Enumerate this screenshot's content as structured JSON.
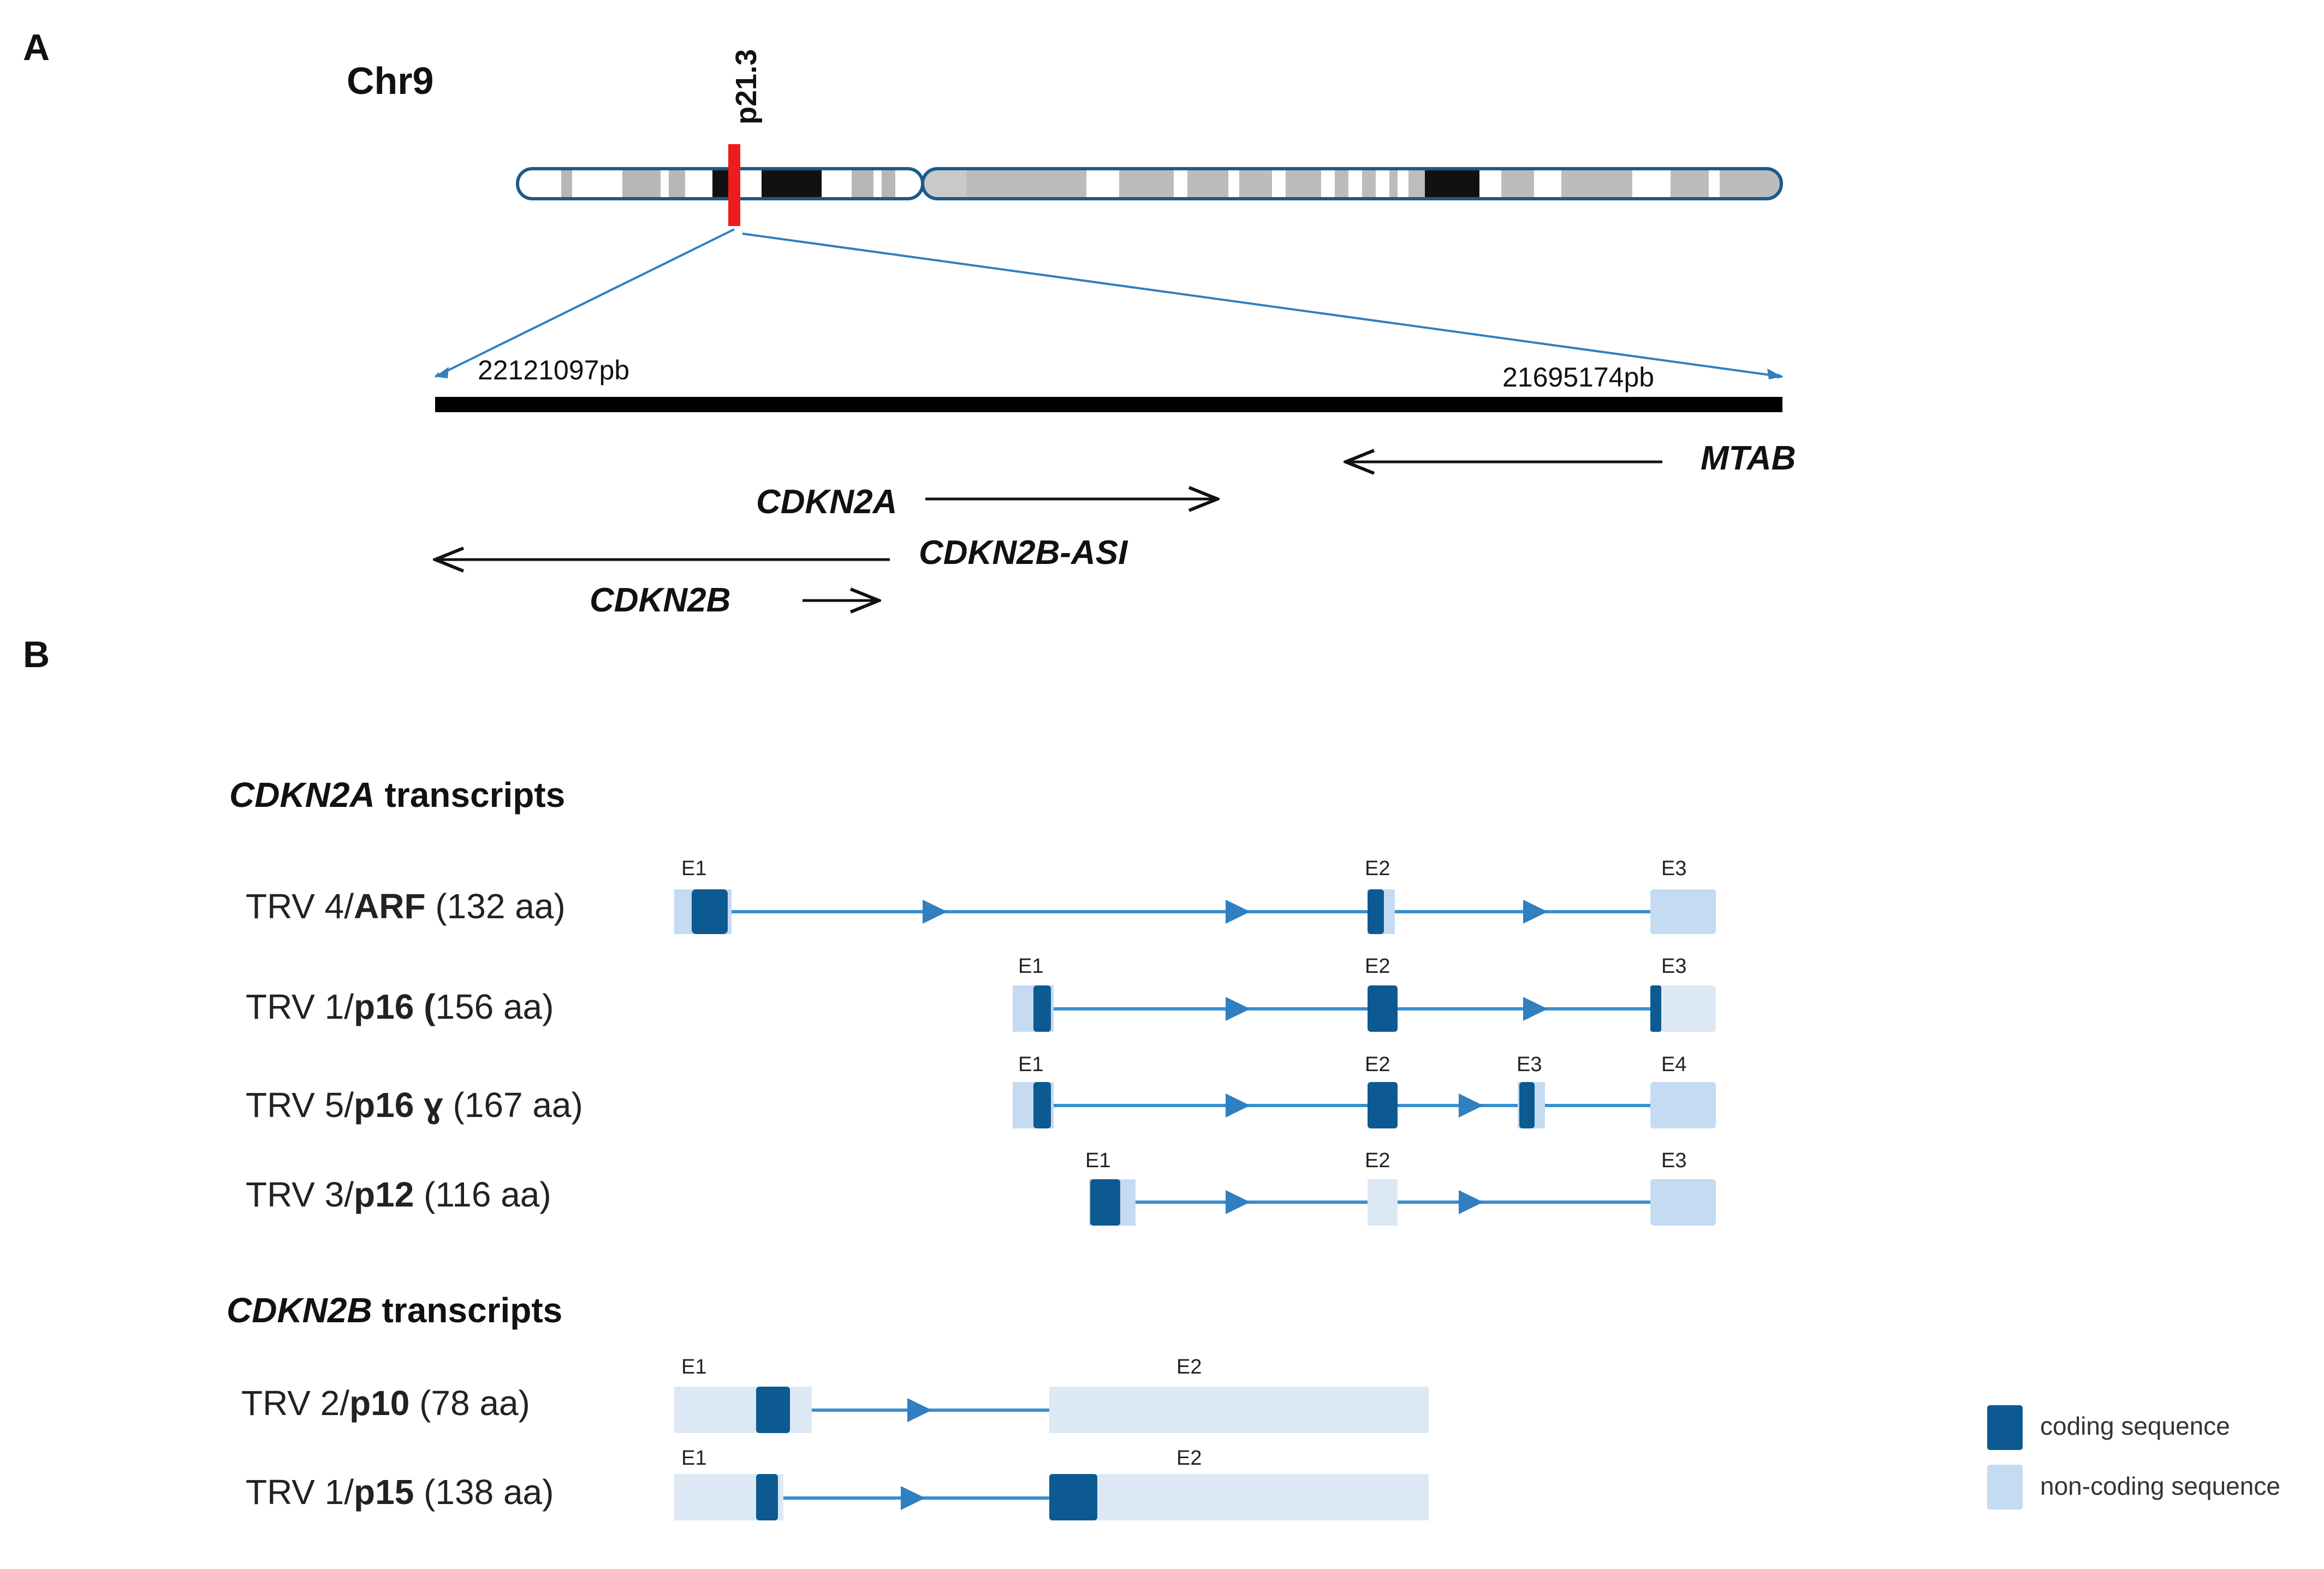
{
  "panel_a": {
    "letter": "A",
    "chromosome": "Chr9",
    "band": "p21.3",
    "coord_left": "22121097pb",
    "coord_right": "21695174pb",
    "genes": {
      "cdkn2a": "CDKN2A",
      "mtab": "MTAB",
      "cdkn2b_as1": "CDKN2B-ASI",
      "cdkn2b": "CDKN2B"
    }
  },
  "panel_b": {
    "letter": "B",
    "cdkn2a_section": {
      "gene": "CDKN2A",
      "suffix": " transcripts"
    },
    "cdkn2b_section": {
      "gene": "CDKN2B",
      "suffix": " transcripts"
    },
    "transcripts": [
      {
        "prefix": "TRV 4/",
        "protein": "ARF",
        "rest": " (132 aa)",
        "exons": [
          "E1",
          "E2",
          "E3"
        ]
      },
      {
        "prefix": "TRV 1/",
        "protein": "p16 (",
        "rest": "156 aa)",
        "exons": [
          "E1",
          "E2",
          "E3"
        ]
      },
      {
        "prefix": "TRV 5/",
        "protein": "p16 ɣ",
        "rest": " (167 aa)",
        "exons": [
          "E1",
          "E2",
          "E3",
          "E4"
        ]
      },
      {
        "prefix": "TRV 3/",
        "protein": "p12",
        "rest": " (116 aa)",
        "exons": [
          "E1",
          "E2",
          "E3"
        ]
      },
      {
        "prefix": "TRV 2/",
        "protein": "p10",
        "rest": " (78 aa)",
        "exons": [
          "E1",
          "E2"
        ]
      },
      {
        "prefix": "TRV 1/",
        "protein": "p15",
        "rest": " (138 aa)",
        "exons": [
          "E1",
          "E2"
        ]
      }
    ]
  },
  "legend": {
    "coding": "coding sequence",
    "noncoding": "non-coding sequence"
  },
  "colors": {
    "coding": "#0d5a92",
    "noncoding": "#c4dbf1",
    "noncoding_light": "#dde8f5",
    "line": "#3a8fd0",
    "highlight": "#ee1c1c",
    "outline": "#1a5b8a"
  }
}
